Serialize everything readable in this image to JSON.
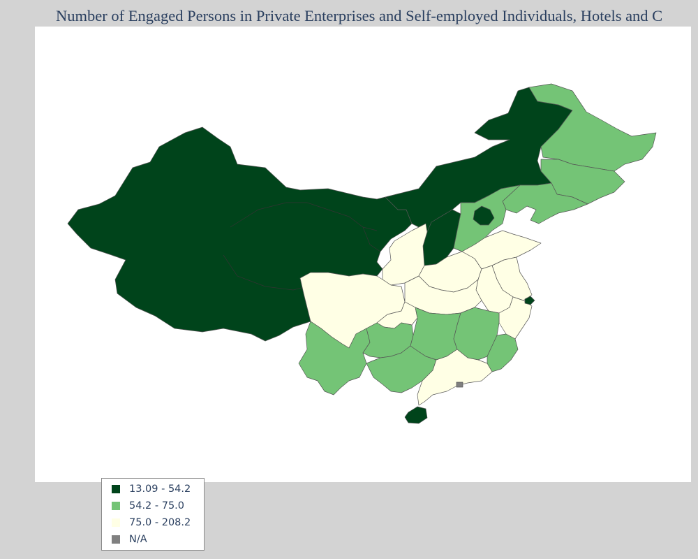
{
  "title": "Number of Engaged Persons in Private Enterprises and Self-employed Individuals, Hotels and C",
  "colors": {
    "dark": "#00441b",
    "mid": "#74c476",
    "light": "#ffffe5",
    "na": "#808080",
    "background": "#d3d3d3",
    "panel": "#ffffff",
    "border": "#555555"
  },
  "legend": [
    {
      "label": "13.09 - 54.2",
      "color": "#00441b"
    },
    {
      "label": "54.2 - 75.0",
      "color": "#74c476"
    },
    {
      "label": "75.0 - 208.2",
      "color": "#ffffe5"
    },
    {
      "label": "N/A",
      "color": "#808080"
    }
  ],
  "regions": [
    {
      "id": "northwest-group",
      "class": "13.09 - 54.2"
    },
    {
      "id": "inner-mongolia",
      "class": "13.09 - 54.2"
    },
    {
      "id": "shanxi",
      "class": "13.09 - 54.2"
    },
    {
      "id": "beijing",
      "class": "13.09 - 54.2"
    },
    {
      "id": "shanghai",
      "class": "13.09 - 54.2"
    },
    {
      "id": "hainan",
      "class": "13.09 - 54.2"
    },
    {
      "id": "heilongjiang",
      "class": "54.2 - 75.0"
    },
    {
      "id": "jilin",
      "class": "54.2 - 75.0"
    },
    {
      "id": "liaoning",
      "class": "54.2 - 75.0"
    },
    {
      "id": "hebei",
      "class": "54.2 - 75.0"
    },
    {
      "id": "yunnan",
      "class": "54.2 - 75.0"
    },
    {
      "id": "guizhou",
      "class": "54.2 - 75.0"
    },
    {
      "id": "guangxi",
      "class": "54.2 - 75.0"
    },
    {
      "id": "hunan",
      "class": "54.2 - 75.0"
    },
    {
      "id": "jiangxi",
      "class": "54.2 - 75.0"
    },
    {
      "id": "fujian",
      "class": "54.2 - 75.0"
    },
    {
      "id": "sichuan",
      "class": "75.0 - 208.2"
    },
    {
      "id": "chongqing",
      "class": "75.0 - 208.2"
    },
    {
      "id": "shaanxi",
      "class": "75.0 - 208.2"
    },
    {
      "id": "henan",
      "class": "75.0 - 208.2"
    },
    {
      "id": "hubei",
      "class": "75.0 - 208.2"
    },
    {
      "id": "shandong",
      "class": "75.0 - 208.2"
    },
    {
      "id": "anhui",
      "class": "75.0 - 208.2"
    },
    {
      "id": "jiangsu",
      "class": "75.0 - 208.2"
    },
    {
      "id": "zhejiang",
      "class": "75.0 - 208.2"
    },
    {
      "id": "guangdong",
      "class": "75.0 - 208.2"
    },
    {
      "id": "hong-kong",
      "class": "N/A"
    }
  ]
}
